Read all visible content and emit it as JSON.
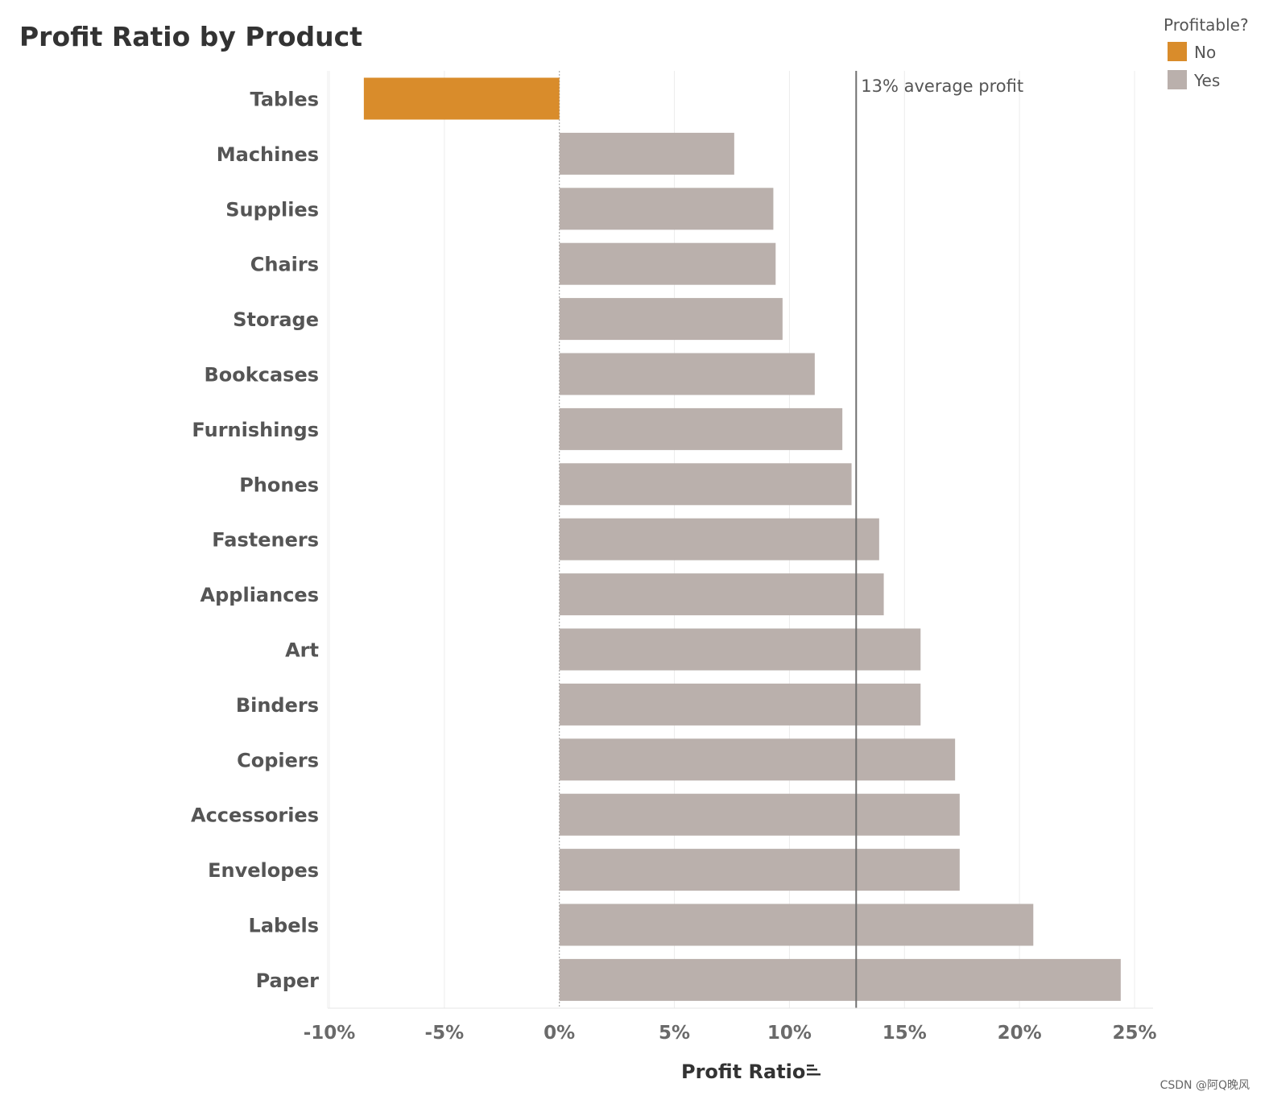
{
  "chart_data": {
    "type": "bar",
    "orientation": "horizontal",
    "title": "Profit Ratio by Product",
    "xlabel": "Profit Ratio",
    "ylabel": "",
    "xlim": [
      -10,
      25
    ],
    "ticks": [
      -10,
      -5,
      0,
      5,
      10,
      15,
      20,
      25
    ],
    "tick_labels": [
      "-10%",
      "-5%",
      "0%",
      "5%",
      "10%",
      "15%",
      "20%",
      "25%"
    ],
    "grid": true,
    "categories": [
      "Tables",
      "Machines",
      "Supplies",
      "Chairs",
      "Storage",
      "Bookcases",
      "Furnishings",
      "Phones",
      "Fasteners",
      "Appliances",
      "Art",
      "Binders",
      "Copiers",
      "Accessories",
      "Envelopes",
      "Labels",
      "Paper"
    ],
    "values": [
      -8.5,
      7.6,
      9.3,
      9.4,
      9.7,
      11.1,
      12.3,
      12.7,
      13.9,
      14.1,
      15.7,
      15.7,
      17.2,
      17.4,
      17.4,
      20.6,
      24.4
    ],
    "profitable": [
      "No",
      "Yes",
      "Yes",
      "Yes",
      "Yes",
      "Yes",
      "Yes",
      "Yes",
      "Yes",
      "Yes",
      "Yes",
      "Yes",
      "Yes",
      "Yes",
      "Yes",
      "Yes",
      "Yes"
    ],
    "reference_line": {
      "value": 12.9,
      "label": "13% average profit"
    },
    "legend": {
      "title": "Profitable?",
      "position": "top-right",
      "items": [
        {
          "label": "No",
          "color": "#d98c2b"
        },
        {
          "label": "Yes",
          "color": "#bab0ac"
        }
      ]
    }
  },
  "watermark": "CSDN @阿Q晚风"
}
